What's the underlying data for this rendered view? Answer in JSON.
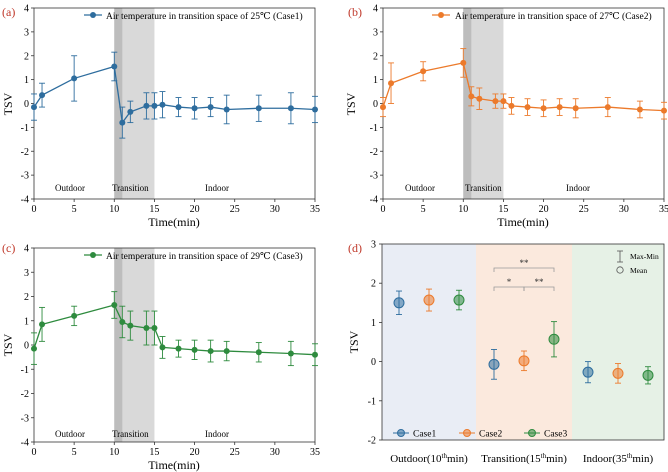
{
  "colors": {
    "case1": "#2e6d9e",
    "case2": "#ec7a2b",
    "case3": "#2e8b3e",
    "panel_tag": "#c0392b",
    "shade": "#d9d9d9",
    "outdoor_bg": "#e9edf5",
    "transition_bg": "#fbe9dd",
    "indoor_bg": "#e6f1e6"
  },
  "chart_data": [
    {
      "type": "line",
      "panel": "(a)",
      "legend": "Air temperature in transition space of  25℃ (Case1)",
      "xlabel": "Time(min)",
      "ylabel": "TSV",
      "xlim": [
        0,
        35
      ],
      "ylim": [
        -4,
        4
      ],
      "xticks": [
        0,
        5,
        10,
        15,
        20,
        25,
        30,
        35
      ],
      "yticks": [
        -4,
        -3,
        -2,
        -1,
        0,
        1,
        2,
        3,
        4
      ],
      "shaded_x": [
        10,
        15
      ],
      "zone_labels": [
        "Outdoor",
        "Transition",
        "Indoor"
      ],
      "series": {
        "name": "Case1",
        "color_key": "case1",
        "x": [
          0,
          1,
          5,
          10,
          11,
          12,
          14,
          15,
          16,
          18,
          20,
          22,
          24,
          28,
          32,
          35
        ],
        "y": [
          -0.15,
          0.35,
          1.05,
          1.55,
          -0.8,
          -0.35,
          -0.1,
          -0.1,
          -0.05,
          -0.15,
          -0.2,
          -0.15,
          -0.25,
          -0.2,
          -0.2,
          -0.25
        ],
        "err": [
          0.55,
          0.5,
          0.95,
          0.6,
          0.65,
          0.45,
          0.55,
          0.55,
          0.55,
          0.4,
          0.45,
          0.4,
          0.6,
          0.55,
          0.65,
          0.55
        ]
      }
    },
    {
      "type": "line",
      "panel": "(b)",
      "legend": "Air temperature in transition space of  27℃ (Case2)",
      "xlabel": "Time(min)",
      "ylabel": "TSV",
      "xlim": [
        0,
        35
      ],
      "ylim": [
        -4,
        4
      ],
      "xticks": [
        0,
        5,
        10,
        15,
        20,
        25,
        30,
        35
      ],
      "yticks": [
        -4,
        -3,
        -2,
        -1,
        0,
        1,
        2,
        3,
        4
      ],
      "shaded_x": [
        10,
        15
      ],
      "zone_labels": [
        "Outdoor",
        "Transition",
        "Indoor"
      ],
      "series": {
        "name": "Case2",
        "color_key": "case2",
        "x": [
          0,
          1,
          5,
          10,
          11,
          12,
          14,
          15,
          16,
          18,
          20,
          22,
          24,
          28,
          32,
          35
        ],
        "y": [
          -0.15,
          0.85,
          1.35,
          1.7,
          0.3,
          0.2,
          0.1,
          0.1,
          -0.1,
          -0.15,
          -0.2,
          -0.15,
          -0.2,
          -0.15,
          -0.25,
          -0.3
        ],
        "err": [
          0.4,
          0.85,
          0.4,
          0.6,
          0.4,
          0.45,
          0.3,
          0.3,
          0.35,
          0.35,
          0.35,
          0.35,
          0.4,
          0.4,
          0.35,
          0.35
        ]
      }
    },
    {
      "type": "line",
      "panel": "(c)",
      "legend": "Air temperature in transition space of  29℃ (Case3)",
      "xlabel": "Time(min)",
      "ylabel": "TSV",
      "xlim": [
        0,
        35
      ],
      "ylim": [
        -4,
        4
      ],
      "xticks": [
        0,
        5,
        10,
        15,
        20,
        25,
        30,
        35
      ],
      "yticks": [
        -4,
        -3,
        -2,
        -1,
        0,
        1,
        2,
        3,
        4
      ],
      "shaded_x": [
        10,
        15
      ],
      "zone_labels": [
        "Outdoor",
        "Transition",
        "Indoor"
      ],
      "series": {
        "name": "Case3",
        "color_key": "case3",
        "x": [
          0,
          1,
          5,
          10,
          11,
          12,
          14,
          15,
          16,
          18,
          20,
          22,
          24,
          28,
          32,
          35
        ],
        "y": [
          -0.15,
          0.85,
          1.2,
          1.65,
          0.95,
          0.8,
          0.7,
          0.7,
          -0.1,
          -0.15,
          -0.2,
          -0.25,
          -0.25,
          -0.3,
          -0.35,
          -0.4
        ],
        "err": [
          0.65,
          0.7,
          0.4,
          0.55,
          0.65,
          0.6,
          0.7,
          0.7,
          0.45,
          0.35,
          0.4,
          0.45,
          0.4,
          0.4,
          0.5,
          0.45
        ]
      }
    },
    {
      "type": "scatter",
      "panel": "(d)",
      "xlabel": "",
      "ylabel": "TSV",
      "ylim": [
        -2,
        3
      ],
      "yticks": [
        -2,
        -1,
        0,
        1,
        2,
        3
      ],
      "groups": [
        "Outdoor(10",
        "Transition(15",
        "Indoor(35"
      ],
      "group_sup": "th",
      "group_suffix": "min)",
      "series": [
        {
          "name": "Case1",
          "color_key": "case1",
          "values": [
            1.5,
            -0.07,
            -0.27
          ],
          "err": [
            0.3,
            0.38,
            0.27
          ]
        },
        {
          "name": "Case2",
          "color_key": "case2",
          "values": [
            1.57,
            0.02,
            -0.3
          ],
          "err": [
            0.28,
            0.25,
            0.25
          ]
        },
        {
          "name": "Case3",
          "color_key": "case3",
          "values": [
            1.57,
            0.57,
            -0.35
          ],
          "err": [
            0.25,
            0.45,
            0.22
          ]
        }
      ],
      "significance": [
        "**",
        "*",
        "**"
      ],
      "legend_items": [
        "Max-Min",
        "Mean"
      ]
    }
  ]
}
